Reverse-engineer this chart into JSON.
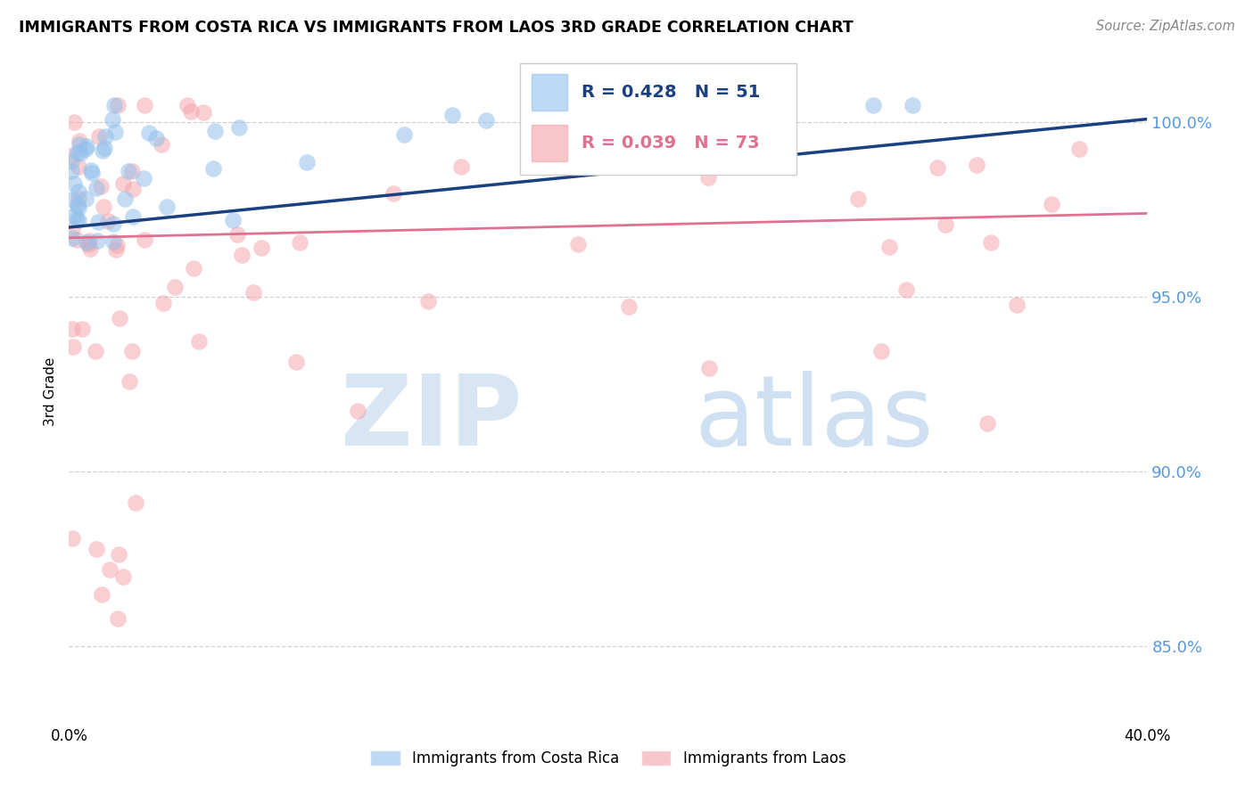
{
  "title": "IMMIGRANTS FROM COSTA RICA VS IMMIGRANTS FROM LAOS 3RD GRADE CORRELATION CHART",
  "source": "Source: ZipAtlas.com",
  "ylabel": "3rd Grade",
  "legend_label_blue": "Immigrants from Costa Rica",
  "legend_label_pink": "Immigrants from Laos",
  "R_blue": 0.428,
  "N_blue": 51,
  "R_pink": 0.039,
  "N_pink": 73,
  "xlim": [
    0.0,
    0.4
  ],
  "ylim": [
    0.828,
    1.018
  ],
  "yticks": [
    0.85,
    0.9,
    0.95,
    1.0
  ],
  "ytick_labels": [
    "85.0%",
    "90.0%",
    "95.0%",
    "100.0%"
  ],
  "xtick_positions": [
    0.0,
    0.08,
    0.16,
    0.24,
    0.32,
    0.4
  ],
  "xtick_labels": [
    "0.0%",
    "",
    "",
    "",
    "",
    "40.0%"
  ],
  "color_blue": "#92C0EC",
  "color_pink": "#F4A0A8",
  "trendline_blue": "#1A4080",
  "trendline_pink": "#E07090",
  "watermark_zip": "ZIP",
  "watermark_atlas": "atlas",
  "background_color": "#FFFFFF",
  "grid_color": "#CCCCCC",
  "ytick_color": "#5599DD",
  "title_fontsize": 12.5,
  "source_fontsize": 10.5,
  "ylabel_fontsize": 11
}
